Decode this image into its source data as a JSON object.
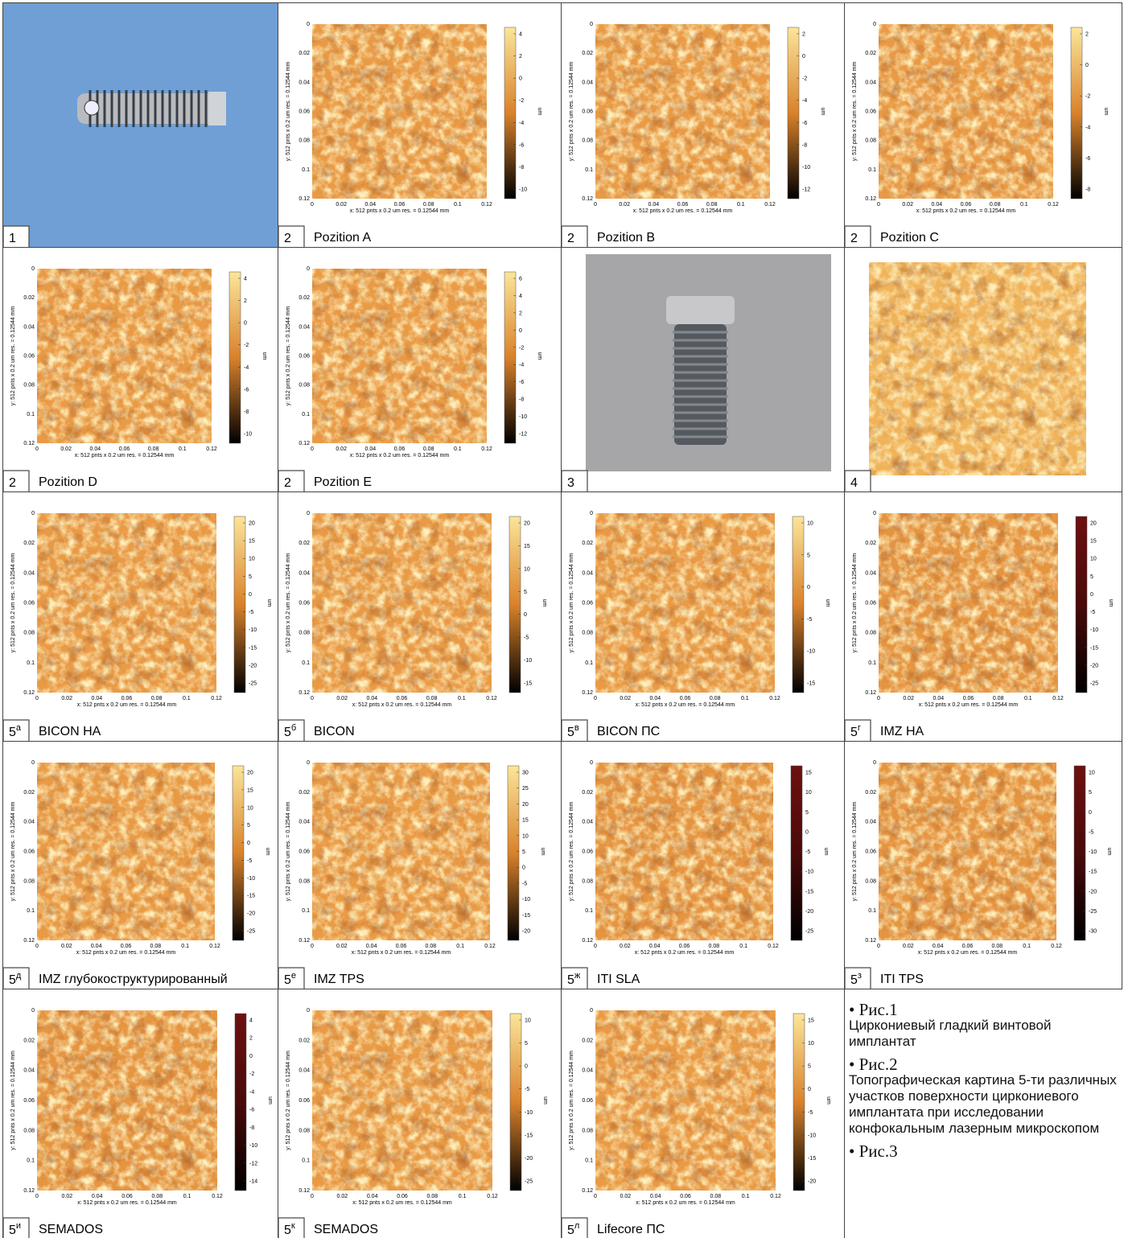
{
  "plot_axes": {
    "ticks": [
      "0",
      "0.02",
      "0.04",
      "0.06",
      "0.08",
      "0.1",
      "0.12"
    ],
    "x_label": "x: 512 pnts x 0.2 um res. = 0.12544 mm",
    "y_label": "y: 512 pnts x 0.2 um res. = 0.12544 mm",
    "unit": "um"
  },
  "panels": [
    {
      "kind": "photo-horizontal",
      "number": "1"
    },
    {
      "kind": "map",
      "number": "2",
      "caption": "Pozition A",
      "colorbar": [
        4,
        2,
        0,
        -2,
        -4,
        -6,
        -8,
        -10
      ],
      "palette": [
        "#fbe59a",
        "#d9822b",
        "#000000"
      ]
    },
    {
      "kind": "map",
      "number": "2",
      "caption": "Pozition B",
      "colorbar": [
        2,
        0,
        -2,
        -4,
        -6,
        -8,
        -10,
        -12
      ],
      "palette": [
        "#fbe59a",
        "#d9822b",
        "#000000"
      ]
    },
    {
      "kind": "map",
      "number": "2",
      "caption": "Pozition C",
      "colorbar": [
        2,
        0,
        -2,
        -4,
        -6,
        -8
      ],
      "palette": [
        "#fbe59a",
        "#d9822b",
        "#000000"
      ]
    },
    {
      "kind": "map",
      "number": "2",
      "caption": "Pozition D",
      "colorbar": [
        4,
        2,
        0,
        -2,
        -4,
        -6,
        -8,
        -10
      ],
      "palette": [
        "#fbe59a",
        "#d9822b",
        "#000000"
      ]
    },
    {
      "kind": "map",
      "number": "2",
      "caption": "Pozition E",
      "colorbar": [
        6,
        4,
        2,
        0,
        -2,
        -4,
        -6,
        -8,
        -10,
        -12
      ],
      "palette": [
        "#fbe59a",
        "#d9822b",
        "#000000"
      ]
    },
    {
      "kind": "photo-vertical",
      "number": "3"
    },
    {
      "kind": "texture",
      "number": "4"
    },
    {
      "kind": "map",
      "number": "5",
      "sup": "а",
      "caption": "BICON HA",
      "colorbar": [
        20,
        15,
        10,
        5,
        0,
        -5,
        -10,
        -15,
        -20,
        -25
      ],
      "palette": [
        "#fbe59a",
        "#d9822b",
        "#000000"
      ]
    },
    {
      "kind": "map",
      "number": "5",
      "sup": "б",
      "caption": "BICON",
      "colorbar": [
        20,
        15,
        10,
        5,
        0,
        -5,
        -10,
        -15
      ],
      "palette": [
        "#fbe59a",
        "#d9822b",
        "#000000"
      ]
    },
    {
      "kind": "map",
      "number": "5",
      "sup": "в",
      "caption": "BICON ПС",
      "colorbar": [
        10,
        5,
        0,
        -5,
        -10,
        -15
      ],
      "palette": [
        "#fbe59a",
        "#d9822b",
        "#000000"
      ]
    },
    {
      "kind": "map",
      "number": "5",
      "sup": "г",
      "caption": "IMZ HA",
      "colorbar": [
        20,
        15,
        10,
        5,
        0,
        -5,
        -10,
        -15,
        -20,
        -25
      ],
      "palette": [
        "#6e1010",
        "#4a0a0a",
        "#000000"
      ]
    },
    {
      "kind": "map",
      "number": "5",
      "sup": "д",
      "caption": "IMZ глубокоструктурированный",
      "colorbar": [
        20,
        15,
        10,
        5,
        0,
        -5,
        -10,
        -15,
        -20,
        -25
      ],
      "palette": [
        "#fbe59a",
        "#d9822b",
        "#000000"
      ]
    },
    {
      "kind": "map",
      "number": "5",
      "sup": "е",
      "caption": "IMZ TPS",
      "colorbar": [
        30,
        25,
        20,
        15,
        10,
        5,
        0,
        -5,
        -10,
        -15,
        -20
      ],
      "palette": [
        "#fbe59a",
        "#d9822b",
        "#000000"
      ]
    },
    {
      "kind": "map",
      "number": "5",
      "sup": "ж",
      "caption": "ITI SLA",
      "colorbar": [
        15,
        10,
        5,
        0,
        -5,
        -10,
        -15,
        -20,
        -25
      ],
      "palette": [
        "#6e1010",
        "#4a0a0a",
        "#000000"
      ]
    },
    {
      "kind": "map",
      "number": "5",
      "sup": "з",
      "caption": "ITI TPS",
      "colorbar": [
        10,
        5,
        0,
        -5,
        -10,
        -15,
        -20,
        -25,
        -30
      ],
      "palette": [
        "#6e1010",
        "#4a0a0a",
        "#000000"
      ]
    },
    {
      "kind": "map",
      "number": "5",
      "sup": "и",
      "caption": "SEMADOS",
      "colorbar": [
        4,
        2,
        0,
        -2,
        -4,
        -6,
        -8,
        -10,
        -12,
        -14
      ],
      "palette": [
        "#6e1010",
        "#4a0a0a",
        "#000000"
      ]
    },
    {
      "kind": "map",
      "number": "5",
      "sup": "к",
      "caption": "SEMADOS",
      "colorbar": [
        10,
        5,
        0,
        -5,
        -10,
        -15,
        -20,
        -25
      ],
      "palette": [
        "#fbe59a",
        "#d9822b",
        "#000000"
      ]
    },
    {
      "kind": "map",
      "number": "5",
      "sup": "л",
      "caption": "Lifecore ПС",
      "colorbar": [
        15,
        10,
        5,
        0,
        -5,
        -10,
        -15,
        -20
      ],
      "palette": [
        "#fbe59a",
        "#d9822b",
        "#000000"
      ]
    }
  ],
  "notes": [
    {
      "heading": "• Рис.1",
      "text": "Циркониевый гладкий винтовой имплантат"
    },
    {
      "heading": "• Рис.2",
      "text": "Топографическая картина 5-ти различных участков поверхности циркониевого имплантата при исследовании конфокальным лазерным микроскопом"
    },
    {
      "heading": "• Рис.3"
    }
  ]
}
